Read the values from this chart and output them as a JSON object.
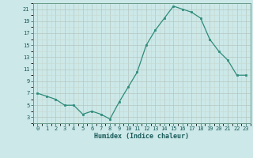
{
  "x": [
    0,
    1,
    2,
    3,
    4,
    5,
    6,
    7,
    8,
    9,
    10,
    11,
    12,
    13,
    14,
    15,
    16,
    17,
    18,
    19,
    20,
    21,
    22,
    23
  ],
  "y": [
    7,
    6.5,
    6,
    5,
    5,
    3.5,
    4,
    3.5,
    2.7,
    5.5,
    8,
    10.5,
    15,
    17.5,
    19.5,
    21.5,
    21,
    20.5,
    19.5,
    16,
    14,
    12.5,
    10,
    10
  ],
  "line_color": "#2e8b7a",
  "marker_color": "#2e8b7a",
  "bg_color": "#cce8e8",
  "grid_major_color": "#b8c8c8",
  "grid_minor_color": "#ddeaea",
  "xlabel": "Humidex (Indice chaleur)",
  "yticks": [
    3,
    5,
    7,
    9,
    11,
    13,
    15,
    17,
    19,
    21
  ],
  "xticks": [
    0,
    1,
    2,
    3,
    4,
    5,
    6,
    7,
    8,
    9,
    10,
    11,
    12,
    13,
    14,
    15,
    16,
    17,
    18,
    19,
    20,
    21,
    22,
    23
  ],
  "xlim": [
    -0.3,
    23.3
  ],
  "ylim": [
    2.5,
    22.0
  ]
}
